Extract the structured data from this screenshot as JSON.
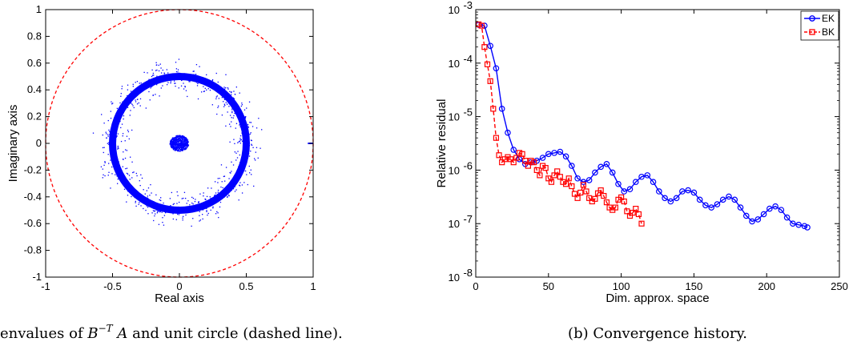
{
  "chart_data": [
    {
      "type": "scatter",
      "xlabel": "Real axis",
      "ylabel": "Imaginary axis",
      "xlim": [
        -1,
        1
      ],
      "ylim": [
        -1,
        1
      ],
      "xticks": [
        "-1",
        "-0.5",
        "0",
        "0.5",
        "1"
      ],
      "yticks": [
        "-1",
        "-0.8",
        "-0.6",
        "-0.4",
        "-0.2",
        "0",
        "0.2",
        "0.4",
        "0.6",
        "0.8",
        "1"
      ],
      "caption_prefix": "envalues of ",
      "caption_B": "B",
      "caption_exp": "−T",
      "caption_A": " A",
      "caption_suffix": " and unit circle (dashed line).",
      "eigen_ring_radius": 0.5,
      "eigen_ring_spread": 0.12,
      "inner_cluster_radius": 0.07,
      "real_segment": [
        0.96,
        1.0
      ],
      "unit_circle_radius": 1.0,
      "colors": {
        "eigen": "#0000ff",
        "circle": "#ff0000"
      }
    },
    {
      "type": "line",
      "xlabel": "Dim. approx. space",
      "ylabel": "Relative residual",
      "xlim": [
        0,
        250
      ],
      "ylim_log10": [
        -8,
        -3
      ],
      "xticks": [
        "0",
        "50",
        "100",
        "150",
        "200",
        "250"
      ],
      "ytick_base": "10",
      "ytick_exponents": [
        "-8",
        "-7",
        "-6",
        "-5",
        "-4",
        "-3"
      ],
      "caption": "(b) Convergence history.",
      "legend_position": "top-right",
      "series": [
        {
          "name": "EK",
          "color": "#0000ff",
          "marker": "circle",
          "dash": false,
          "x": [
            2,
            6,
            10,
            14,
            18,
            22,
            26,
            30,
            34,
            38,
            42,
            46,
            50,
            54,
            58,
            62,
            66,
            70,
            74,
            78,
            82,
            86,
            90,
            94,
            98,
            102,
            106,
            110,
            114,
            118,
            122,
            126,
            130,
            134,
            138,
            142,
            146,
            150,
            154,
            158,
            162,
            166,
            170,
            174,
            178,
            182,
            186,
            190,
            194,
            198,
            202,
            206,
            210,
            214,
            218,
            222,
            226,
            228
          ],
          "y": [
            0.00052,
            0.0005,
            0.00021,
            8e-05,
            1.4e-05,
            5e-06,
            2.4e-06,
            1.6e-06,
            1.3e-06,
            1.4e-06,
            1.5e-06,
            1.7e-06,
            2e-06,
            2.1e-06,
            2.2e-06,
            1.8e-06,
            1.2e-06,
            7e-07,
            6e-07,
            6.5e-07,
            9e-07,
            1.15e-06,
            1.3e-06,
            9e-07,
            5.5e-07,
            4e-07,
            4.4e-07,
            6e-07,
            7.5e-07,
            8e-07,
            6e-07,
            4e-07,
            3e-07,
            2.6e-07,
            3e-07,
            4e-07,
            4.2e-07,
            3.8e-07,
            2.8e-07,
            2.2e-07,
            2e-07,
            2.3e-07,
            2.8e-07,
            3.2e-07,
            2.8e-07,
            2e-07,
            1.4e-07,
            1.1e-07,
            1.2e-07,
            1.5e-07,
            1.9e-07,
            2.1e-07,
            1.8e-07,
            1.3e-07,
            1e-07,
            9.5e-08,
            9e-08,
            8.5e-08
          ]
        },
        {
          "name": "BK",
          "color": "#ff0000",
          "marker": "square",
          "dash": true,
          "x": [
            2,
            4,
            6,
            8,
            10,
            12,
            14,
            16,
            18,
            20,
            22,
            24,
            26,
            28,
            30,
            32,
            34,
            36,
            38,
            40,
            42,
            44,
            46,
            48,
            50,
            52,
            54,
            56,
            58,
            60,
            62,
            64,
            66,
            68,
            70,
            72,
            74,
            76,
            78,
            80,
            82,
            84,
            86,
            88,
            90,
            92,
            94,
            96,
            98,
            100,
            102,
            104,
            106,
            108,
            110,
            112,
            114
          ],
          "y": [
            0.00053,
            0.0005,
            0.0002,
            9.5e-05,
            4.6e-05,
            1.4e-05,
            4e-06,
            1.9e-06,
            1.4e-06,
            1.6e-06,
            1.75e-06,
            1.6e-06,
            1.4e-06,
            1.7e-06,
            2.1e-06,
            2e-06,
            1.5e-06,
            1.2e-06,
            1.5e-06,
            1.4e-06,
            1e-06,
            8e-07,
            1.2e-06,
            1.1e-06,
            7e-07,
            6e-07,
            8e-07,
            9.5e-07,
            7.5e-07,
            6e-07,
            5.5e-07,
            7e-07,
            5e-07,
            3.6e-07,
            3e-07,
            3.8e-07,
            5.3e-07,
            4e-07,
            3e-07,
            2.6e-07,
            2.9e-07,
            3.7e-07,
            4.2e-07,
            3.3e-07,
            2.5e-07,
            2e-07,
            1.8e-07,
            2e-07,
            2.8e-07,
            3.1e-07,
            2.6e-07,
            1.7e-07,
            1.4e-07,
            1.6e-07,
            1.9e-07,
            1.5e-07,
            1e-07
          ]
        }
      ]
    }
  ]
}
